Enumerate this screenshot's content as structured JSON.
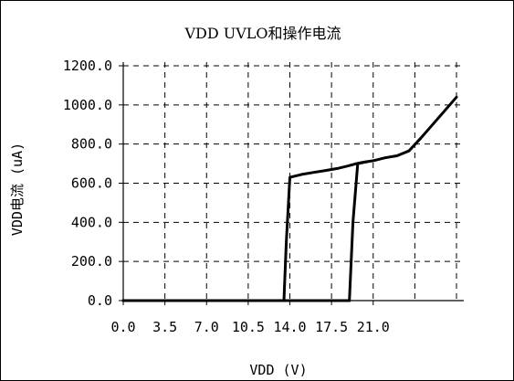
{
  "chart_data": {
    "type": "line",
    "title": "VDD UVLO和操作电流",
    "xlabel": "VDD (V)",
    "ylabel": "VDD电流 (uA)",
    "x_ticks": [
      "0.0",
      "3.5",
      "7.0",
      "10.5",
      "14.0",
      "17.5",
      "21.0"
    ],
    "y_ticks": [
      "0.0",
      "200.0",
      "400.0",
      "600.0",
      "800.0",
      "1000.0",
      "1200.0"
    ],
    "xlim": [
      0,
      28
    ],
    "ylim": [
      0,
      1200
    ],
    "grid": true,
    "legend": "none",
    "series": [
      {
        "values_xy": [
          [
            0,
            0
          ],
          [
            13.5,
            0
          ],
          [
            13.7,
            300
          ],
          [
            14.0,
            630
          ],
          [
            15.0,
            645
          ],
          [
            16.0,
            655
          ],
          [
            17.0,
            665
          ],
          [
            18.0,
            675
          ],
          [
            19.0,
            690
          ],
          [
            19.6,
            700
          ],
          [
            20.0,
            705
          ],
          [
            21.0,
            715
          ],
          [
            22.0,
            730
          ],
          [
            23.0,
            740
          ],
          [
            24.0,
            765
          ],
          [
            25.0,
            830
          ],
          [
            26.0,
            900
          ],
          [
            27.0,
            970
          ],
          [
            28.0,
            1040
          ]
        ]
      },
      {
        "values_xy": [
          [
            0,
            0
          ],
          [
            19.0,
            0
          ],
          [
            19.3,
            400
          ],
          [
            19.7,
            700
          ],
          [
            20.5,
            710
          ]
        ]
      }
    ],
    "line_color": "#000000"
  }
}
